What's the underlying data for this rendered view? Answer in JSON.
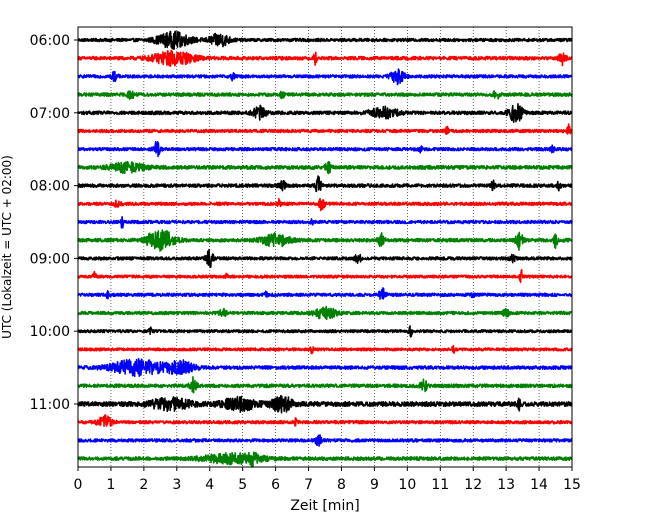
{
  "chart_data": {
    "type": "line",
    "title": "",
    "xlabel": "Zeit  [min]",
    "ylabel": "UTC (Lokalzeit = UTC + 02:00)",
    "xlim": [
      0,
      15
    ],
    "x_ticks": [
      0,
      1,
      2,
      3,
      4,
      5,
      6,
      7,
      8,
      9,
      10,
      11,
      12,
      13,
      14,
      15
    ],
    "x_tick_labels": [
      "0",
      "1",
      "2",
      "3",
      "4",
      "5",
      "6",
      "7",
      "8",
      "9",
      "10",
      "11",
      "12",
      "13",
      "14",
      "15"
    ],
    "y_ticks": [
      {
        "label": "06:00",
        "row": 0
      },
      {
        "label": "07:00",
        "row": 4
      },
      {
        "label": "08:00",
        "row": 8
      },
      {
        "label": "09:00",
        "row": 12
      },
      {
        "label": "10:00",
        "row": 16
      },
      {
        "label": "11:00",
        "row": 20
      }
    ],
    "grid": {
      "vertical": true,
      "style": "dotted"
    },
    "row_minutes": 15,
    "trace_colors": [
      "#000000",
      "#ff0000",
      "#0000ff",
      "#008000"
    ],
    "series": [
      {
        "start": "06:00",
        "color": "#000000",
        "noise": 0.2,
        "events": [
          {
            "t": 2.9,
            "amp": 1.0,
            "w": 0.5
          },
          {
            "t": 4.3,
            "amp": 0.8,
            "w": 0.3
          }
        ]
      },
      {
        "start": "06:15",
        "color": "#ff0000",
        "noise": 0.22,
        "events": [
          {
            "t": 2.9,
            "amp": 0.9,
            "w": 0.6
          },
          {
            "t": 7.2,
            "amp": 0.7,
            "w": 0.05
          },
          {
            "t": 14.7,
            "amp": 0.8,
            "w": 0.1
          }
        ]
      },
      {
        "start": "06:30",
        "color": "#0000ff",
        "noise": 0.2,
        "events": [
          {
            "t": 1.1,
            "amp": 0.5,
            "w": 0.1
          },
          {
            "t": 4.7,
            "amp": 0.6,
            "w": 0.05
          },
          {
            "t": 9.7,
            "amp": 0.9,
            "w": 0.2
          }
        ]
      },
      {
        "start": "06:45",
        "color": "#008000",
        "noise": 0.22,
        "events": [
          {
            "t": 1.6,
            "amp": 0.5,
            "w": 0.1
          },
          {
            "t": 6.2,
            "amp": 0.5,
            "w": 0.05
          },
          {
            "t": 12.7,
            "amp": 0.5,
            "w": 0.1
          }
        ]
      },
      {
        "start": "07:00",
        "color": "#000000",
        "noise": 0.22,
        "events": [
          {
            "t": 5.5,
            "amp": 0.8,
            "w": 0.2
          },
          {
            "t": 9.3,
            "amp": 0.7,
            "w": 0.4
          },
          {
            "t": 13.3,
            "amp": 1.2,
            "w": 0.2
          }
        ]
      },
      {
        "start": "07:15",
        "color": "#ff0000",
        "noise": 0.2,
        "events": [
          {
            "t": 11.2,
            "amp": 0.5,
            "w": 0.05
          },
          {
            "t": 14.9,
            "amp": 0.8,
            "w": 0.05
          }
        ]
      },
      {
        "start": "07:30",
        "color": "#0000ff",
        "noise": 0.2,
        "events": [
          {
            "t": 2.4,
            "amp": 1.0,
            "w": 0.1
          },
          {
            "t": 10.4,
            "amp": 0.4,
            "w": 0.05
          },
          {
            "t": 14.4,
            "amp": 0.5,
            "w": 0.05
          }
        ]
      },
      {
        "start": "07:45",
        "color": "#008000",
        "noise": 0.24,
        "events": [
          {
            "t": 1.5,
            "amp": 0.6,
            "w": 0.5
          },
          {
            "t": 7.6,
            "amp": 0.6,
            "w": 0.1
          }
        ]
      },
      {
        "start": "08:00",
        "color": "#000000",
        "noise": 0.22,
        "events": [
          {
            "t": 6.2,
            "amp": 0.6,
            "w": 0.1
          },
          {
            "t": 7.3,
            "amp": 1.2,
            "w": 0.08
          },
          {
            "t": 12.6,
            "amp": 0.6,
            "w": 0.05
          },
          {
            "t": 14.6,
            "amp": 0.6,
            "w": 0.05
          }
        ]
      },
      {
        "start": "08:15",
        "color": "#ff0000",
        "noise": 0.2,
        "events": [
          {
            "t": 1.2,
            "amp": 0.4,
            "w": 0.1
          },
          {
            "t": 6.1,
            "amp": 0.5,
            "w": 0.05
          },
          {
            "t": 7.4,
            "amp": 0.9,
            "w": 0.08
          }
        ]
      },
      {
        "start": "08:30",
        "color": "#0000ff",
        "noise": 0.2,
        "events": [
          {
            "t": 1.35,
            "amp": 1.0,
            "w": 0.05
          },
          {
            "t": 7.1,
            "amp": 0.5,
            "w": 0.05
          }
        ]
      },
      {
        "start": "08:45",
        "color": "#008000",
        "noise": 0.22,
        "events": [
          {
            "t": 2.5,
            "amp": 1.4,
            "w": 0.4
          },
          {
            "t": 6.0,
            "amp": 0.8,
            "w": 0.4
          },
          {
            "t": 9.2,
            "amp": 0.9,
            "w": 0.1
          },
          {
            "t": 13.4,
            "amp": 1.2,
            "w": 0.1
          },
          {
            "t": 14.5,
            "amp": 1.1,
            "w": 0.05
          }
        ]
      },
      {
        "start": "09:00",
        "color": "#000000",
        "noise": 0.2,
        "events": [
          {
            "t": 4.0,
            "amp": 1.3,
            "w": 0.1
          },
          {
            "t": 8.5,
            "amp": 0.5,
            "w": 0.1
          },
          {
            "t": 13.2,
            "amp": 0.4,
            "w": 0.1
          }
        ]
      },
      {
        "start": "09:15",
        "color": "#ff0000",
        "noise": 0.18,
        "events": [
          {
            "t": 0.5,
            "amp": 0.5,
            "w": 0.05
          },
          {
            "t": 4.5,
            "amp": 0.4,
            "w": 0.05
          },
          {
            "t": 13.45,
            "amp": 1.1,
            "w": 0.05
          }
        ]
      },
      {
        "start": "09:30",
        "color": "#0000ff",
        "noise": 0.2,
        "events": [
          {
            "t": 0.9,
            "amp": 0.4,
            "w": 0.05
          },
          {
            "t": 5.7,
            "amp": 0.4,
            "w": 0.05
          },
          {
            "t": 9.25,
            "amp": 0.8,
            "w": 0.1
          },
          {
            "t": 12.0,
            "amp": 0.4,
            "w": 0.05
          }
        ]
      },
      {
        "start": "09:45",
        "color": "#008000",
        "noise": 0.2,
        "events": [
          {
            "t": 4.4,
            "amp": 0.5,
            "w": 0.1
          },
          {
            "t": 7.5,
            "amp": 0.8,
            "w": 0.3
          },
          {
            "t": 13.0,
            "amp": 0.4,
            "w": 0.1
          }
        ]
      },
      {
        "start": "10:00",
        "color": "#000000",
        "noise": 0.18,
        "events": [
          {
            "t": 2.2,
            "amp": 0.4,
            "w": 0.05
          },
          {
            "t": 10.1,
            "amp": 0.7,
            "w": 0.05
          }
        ]
      },
      {
        "start": "10:15",
        "color": "#ff0000",
        "noise": 0.18,
        "events": [
          {
            "t": 7.1,
            "amp": 0.4,
            "w": 0.05
          },
          {
            "t": 11.4,
            "amp": 0.4,
            "w": 0.05
          }
        ]
      },
      {
        "start": "10:30",
        "color": "#0000ff",
        "noise": 0.22,
        "events": [
          {
            "t": 1.8,
            "amp": 1.0,
            "w": 0.8
          },
          {
            "t": 3.1,
            "amp": 0.8,
            "w": 0.4
          }
        ]
      },
      {
        "start": "10:45",
        "color": "#008000",
        "noise": 0.22,
        "events": [
          {
            "t": 3.5,
            "amp": 1.0,
            "w": 0.1
          },
          {
            "t": 10.5,
            "amp": 0.7,
            "w": 0.1
          }
        ]
      },
      {
        "start": "11:00",
        "color": "#000000",
        "noise": 0.3,
        "events": [
          {
            "t": 2.8,
            "amp": 0.7,
            "w": 0.6
          },
          {
            "t": 4.9,
            "amp": 0.8,
            "w": 0.5
          },
          {
            "t": 6.2,
            "amp": 1.0,
            "w": 0.3
          },
          {
            "t": 13.4,
            "amp": 0.9,
            "w": 0.05
          }
        ]
      },
      {
        "start": "11:15",
        "color": "#ff0000",
        "noise": 0.2,
        "events": [
          {
            "t": 0.8,
            "amp": 0.9,
            "w": 0.2
          },
          {
            "t": 6.6,
            "amp": 0.7,
            "w": 0.05
          }
        ]
      },
      {
        "start": "11:30",
        "color": "#0000ff",
        "noise": 0.2,
        "events": [
          {
            "t": 7.3,
            "amp": 0.8,
            "w": 0.1
          }
        ]
      },
      {
        "start": "11:45",
        "color": "#008000",
        "noise": 0.22,
        "events": [
          {
            "t": 4.7,
            "amp": 0.6,
            "w": 0.9
          },
          {
            "t": 5.3,
            "amp": 0.8,
            "w": 0.1
          }
        ]
      }
    ]
  }
}
